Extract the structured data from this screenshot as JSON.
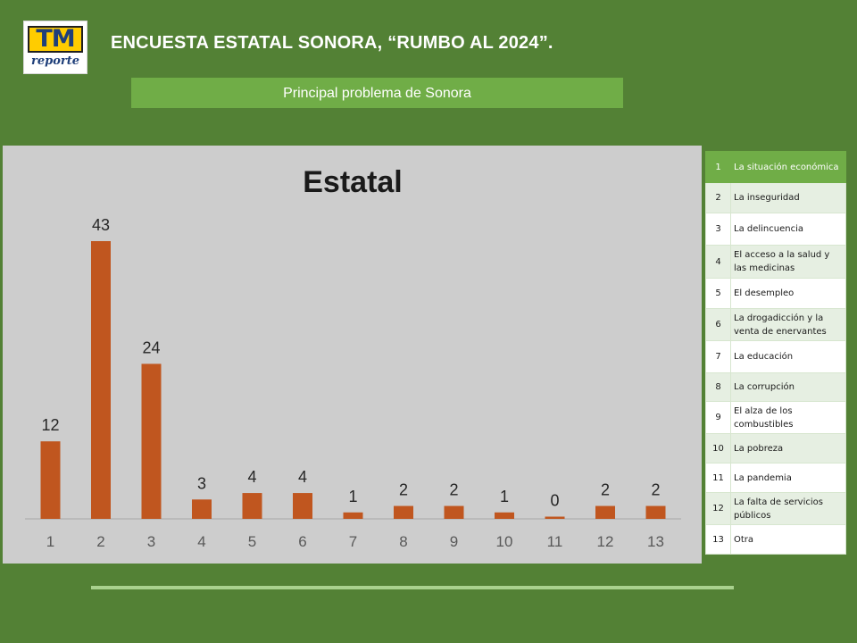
{
  "logo": {
    "main": "TM",
    "sub": "reporte"
  },
  "header": {
    "title": "ENCUESTA ESTATAL SONORA, “RUMBO AL 2024”."
  },
  "subtitle": "Principal problema de Sonora",
  "chart_data": {
    "type": "bar",
    "title": "Estatal",
    "categories": [
      "1",
      "2",
      "3",
      "4",
      "5",
      "6",
      "7",
      "8",
      "9",
      "10",
      "11",
      "12",
      "13"
    ],
    "values": [
      12,
      43,
      24,
      3,
      4,
      4,
      1,
      2,
      2,
      1,
      0,
      2,
      2
    ],
    "xlabel": "",
    "ylabel": "",
    "grid": false,
    "colors": {
      "bar": "#c0561f",
      "background": "#cdcdcd"
    }
  },
  "legend": [
    {
      "num": "1",
      "label": "La situación económica"
    },
    {
      "num": "2",
      "label": "La inseguridad"
    },
    {
      "num": "3",
      "label": "La delincuencia"
    },
    {
      "num": "4",
      "label": "El acceso a la salud y las medicinas"
    },
    {
      "num": "5",
      "label": "El desempleo"
    },
    {
      "num": "6",
      "label": "La drogadicción y la venta de enervantes"
    },
    {
      "num": "7",
      "label": "La educación"
    },
    {
      "num": "8",
      "label": "La corrupción"
    },
    {
      "num": "9",
      "label": "El alza de los combustibles"
    },
    {
      "num": "10",
      "label": "La pobreza"
    },
    {
      "num": "11",
      "label": "La pandemia"
    },
    {
      "num": "12",
      "label": "La falta de servicios públicos"
    },
    {
      "num": "13",
      "label": "Otra"
    }
  ],
  "colors": {
    "background": "#538135",
    "accent": "#70ad47",
    "line": "#a9d18e"
  }
}
